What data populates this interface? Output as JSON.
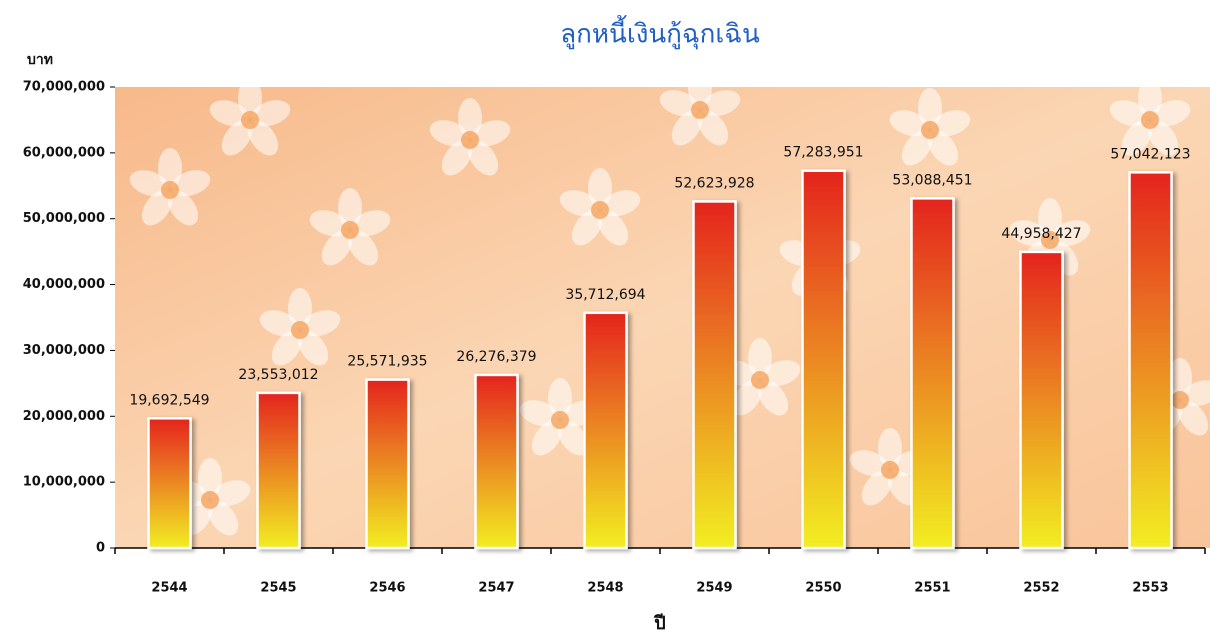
{
  "chart_data": {
    "type": "bar",
    "title": "ลูกหนี้เงินกู้ฉุกเฉิน",
    "y_label": "บาท",
    "x_label": "ปี",
    "categories": [
      "2544",
      "2545",
      "2546",
      "2547",
      "2548",
      "2549",
      "2550",
      "2551",
      "2552",
      "2553"
    ],
    "values": [
      19692549,
      23553012,
      25571935,
      26276379,
      35712694,
      52623928,
      57283951,
      53088451,
      44958427,
      57042123
    ],
    "value_labels": [
      "19,692,549",
      "23,553,012",
      "25,571,935",
      "26,276,379",
      "35,712,694",
      "52,623,928",
      "57,283,951",
      "53,088,451",
      "44,958,427",
      "57,042,123"
    ],
    "gradient": [
      "#e4241f",
      "#f2ee22"
    ],
    "ylim": [
      0,
      70000000
    ],
    "yticks": [
      0,
      {
        "value": 10000000,
        "label": "10,000,000"
      },
      {
        "value": 20000000,
        "label": "20,000,000"
      },
      {
        "value": 30000000,
        "label": "30,000,000"
      },
      {
        "value": 40000000,
        "label": "40,000,000"
      },
      {
        "value": 50000000,
        "label": "50,000,000"
      },
      {
        "value": 60000000,
        "label": "60,000,000"
      },
      {
        "value": 70000000,
        "label": "70,000,000"
      }
    ]
  }
}
